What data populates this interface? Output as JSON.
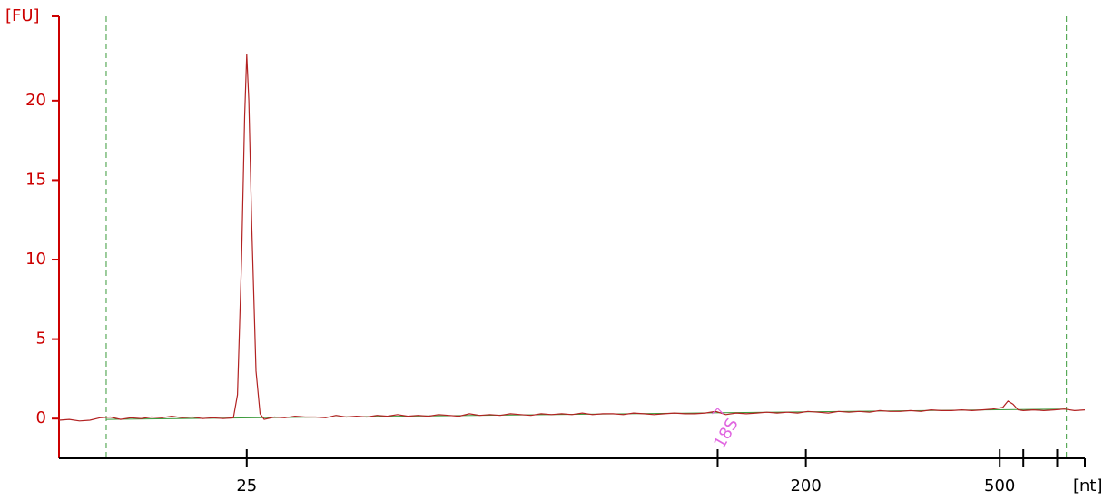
{
  "chart_data": {
    "type": "line",
    "y_label": "[FU]",
    "x_label": "[nt]",
    "axis_color": "#cc0000",
    "x_axis_color": "#000000",
    "xlim": [
      0,
      100
    ],
    "ylim": [
      -2.5,
      25.3
    ],
    "yticks": [
      0,
      5,
      10,
      15,
      20
    ],
    "xticks": [
      {
        "value": 18.3,
        "label": "25"
      },
      {
        "value": 64.2,
        "label": null
      },
      {
        "value": 72.8,
        "label": "200"
      },
      {
        "value": 91.7,
        "label": "500"
      },
      {
        "value": 94.0,
        "label": null
      },
      {
        "value": 97.3,
        "label": null
      }
    ],
    "series": [
      {
        "color": "#b22222",
        "x": [
          0,
          1,
          2,
          3,
          4,
          5,
          6,
          7,
          8,
          9,
          10,
          11,
          12,
          13,
          14,
          15,
          16,
          17,
          17.4,
          17.8,
          18.1,
          18.3,
          18.5,
          18.8,
          19.2,
          19.6,
          20,
          21,
          22,
          23,
          24,
          25,
          26,
          27,
          28,
          29,
          30,
          31,
          32,
          33,
          34,
          35,
          36,
          37,
          38,
          39,
          40,
          41,
          42,
          43,
          44,
          45,
          46,
          47,
          48,
          49,
          50,
          51,
          52,
          53,
          54,
          55,
          56,
          57,
          58,
          59,
          60,
          61,
          62,
          63,
          64,
          65,
          66,
          67,
          68,
          69,
          70,
          71,
          72,
          73,
          74,
          75,
          76,
          77,
          78,
          79,
          80,
          81,
          82,
          83,
          84,
          85,
          86,
          87,
          88,
          89,
          90,
          91,
          92,
          92.5,
          93,
          93.5,
          94,
          95,
          96,
          97,
          98,
          99,
          100
        ],
        "values": [
          -0.1,
          -0.05,
          -0.15,
          -0.1,
          0.05,
          0.1,
          -0.05,
          0.05,
          0.0,
          0.1,
          0.05,
          0.15,
          0.05,
          0.1,
          0.0,
          0.05,
          0.0,
          0.05,
          1.5,
          10,
          19,
          22.9,
          20,
          12,
          3,
          0.3,
          -0.05,
          0.1,
          0.05,
          0.15,
          0.1,
          0.1,
          0.05,
          0.2,
          0.1,
          0.15,
          0.1,
          0.2,
          0.15,
          0.25,
          0.15,
          0.2,
          0.15,
          0.25,
          0.2,
          0.15,
          0.3,
          0.2,
          0.25,
          0.2,
          0.3,
          0.25,
          0.2,
          0.3,
          0.25,
          0.3,
          0.25,
          0.35,
          0.25,
          0.3,
          0.3,
          0.25,
          0.35,
          0.3,
          0.25,
          0.3,
          0.35,
          0.3,
          0.3,
          0.35,
          0.45,
          0.25,
          0.35,
          0.3,
          0.35,
          0.4,
          0.35,
          0.4,
          0.35,
          0.45,
          0.4,
          0.35,
          0.45,
          0.4,
          0.45,
          0.4,
          0.5,
          0.45,
          0.45,
          0.5,
          0.45,
          0.55,
          0.5,
          0.5,
          0.55,
          0.5,
          0.55,
          0.6,
          0.7,
          1.1,
          0.9,
          0.55,
          0.5,
          0.55,
          0.5,
          0.55,
          0.6,
          0.5,
          0.55
        ]
      }
    ],
    "baseline": {
      "color": "#3a9a3a",
      "x": [
        4.6,
        98.2
      ],
      "values": [
        -0.05,
        0.6
      ]
    },
    "vlines": {
      "color": "#3a9a3a",
      "x": [
        4.6,
        98.2
      ]
    },
    "markers": [
      {
        "label": "18S",
        "x": 64.2,
        "value": 0.3,
        "color": "#e066e0"
      }
    ]
  }
}
